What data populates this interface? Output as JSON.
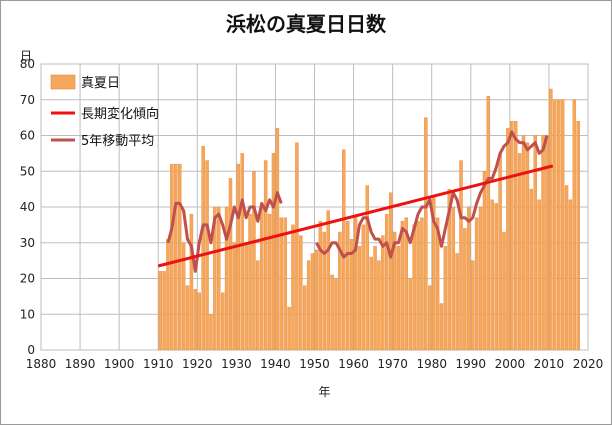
{
  "title": "浜松の真夏日日数",
  "chart_data": {
    "type": "bar",
    "title": "浜松の真夏日日数",
    "xlabel": "年",
    "ylabel": "日",
    "xlim": [
      1880,
      2020
    ],
    "ylim": [
      0,
      80
    ],
    "x_ticks": [
      1880,
      1890,
      1900,
      1910,
      1920,
      1930,
      1940,
      1950,
      1960,
      1970,
      1980,
      1990,
      2000,
      2010,
      2020
    ],
    "y_ticks": [
      0,
      10,
      20,
      30,
      40,
      50,
      60,
      70,
      80
    ],
    "grid": true,
    "legend_position": "top-left",
    "series": [
      {
        "name": "真夏日",
        "kind": "bar",
        "color": "#f5a85c",
        "x": [
          1910,
          1911,
          1912,
          1913,
          1914,
          1915,
          1916,
          1917,
          1918,
          1919,
          1920,
          1921,
          1922,
          1923,
          1924,
          1925,
          1926,
          1927,
          1928,
          1929,
          1930,
          1931,
          1932,
          1933,
          1934,
          1935,
          1936,
          1937,
          1938,
          1939,
          1940,
          1941,
          1942,
          1943,
          1944,
          1945,
          1946,
          1947,
          1948,
          1949,
          1950,
          1951,
          1952,
          1953,
          1954,
          1955,
          1956,
          1957,
          1958,
          1959,
          1960,
          1961,
          1962,
          1963,
          1964,
          1965,
          1966,
          1967,
          1968,
          1969,
          1970,
          1971,
          1972,
          1973,
          1974,
          1975,
          1976,
          1977,
          1978,
          1979,
          1980,
          1981,
          1982,
          1983,
          1984,
          1985,
          1986,
          1987,
          1988,
          1989,
          1990,
          1991,
          1992,
          1993,
          1994,
          1995,
          1996,
          1997,
          1998,
          1999,
          2000,
          2001,
          2002,
          2003,
          2004,
          2005,
          2006,
          2007,
          2008,
          2009,
          2010,
          2011,
          2012,
          2013,
          2014,
          2015,
          2016,
          2017
        ],
        "values": [
          22,
          22,
          31,
          52,
          52,
          52,
          30,
          18,
          38,
          17,
          16,
          57,
          53,
          10,
          40,
          40,
          16,
          40,
          48,
          30,
          52,
          55,
          30,
          38,
          50,
          25,
          40,
          53,
          38,
          55,
          62,
          37,
          37,
          12,
          35,
          58,
          32,
          18,
          25,
          27,
          28,
          36,
          33,
          39,
          21,
          20,
          33,
          56,
          36,
          31,
          37,
          29,
          35,
          46,
          26,
          29,
          25,
          32,
          38,
          44,
          33,
          29,
          36,
          37,
          20,
          35,
          36,
          37,
          65,
          18,
          43,
          37,
          13,
          29,
          45,
          40,
          27,
          53,
          34,
          40,
          25,
          37,
          40,
          50,
          71,
          42,
          41,
          55,
          33,
          62,
          64,
          64,
          55,
          60,
          58,
          45,
          60,
          42,
          60,
          60,
          73,
          70,
          70,
          70,
          46,
          42,
          70,
          64
        ]
      },
      {
        "name": "長期変化傾向",
        "kind": "line",
        "color": "#ee1111",
        "x": [
          1910,
          2011
        ],
        "values": [
          23.5,
          51.5
        ]
      },
      {
        "name": "5年移動平均",
        "kind": "line",
        "color": "#c0504d",
        "x": [
          1912,
          1913,
          1914,
          1915,
          1916,
          1917,
          1918,
          1919,
          1920,
          1921,
          1922,
          1923,
          1924,
          1925,
          1926,
          1927,
          1928,
          1929,
          1930,
          1931,
          1932,
          1933,
          1934,
          1935,
          1936,
          1937,
          1938,
          1939,
          1940,
          1941,
          1942,
          1943,
          1950,
          1951,
          1952,
          1953,
          1954,
          1955,
          1956,
          1957,
          1958,
          1959,
          1960,
          1961,
          1962,
          1963,
          1964,
          1965,
          1966,
          1967,
          1968,
          1969,
          1970,
          1971,
          1972,
          1973,
          1974,
          1975,
          1976,
          1977,
          1978,
          1979,
          1980,
          1981,
          1982,
          1983,
          1984,
          1985,
          1986,
          1987,
          1988,
          1989,
          1990,
          1991,
          1992,
          1993,
          1994,
          1995,
          1996,
          1997,
          1998,
          1999,
          2000,
          2001,
          2002,
          2003,
          2004,
          2005,
          2006,
          2007,
          2008,
          2009
        ],
        "values": [
          30,
          34,
          41,
          41,
          39,
          31,
          29,
          22,
          30,
          35,
          35,
          30,
          37,
          38,
          35,
          31,
          35,
          40,
          37,
          42,
          37,
          40,
          40,
          36,
          41,
          39,
          42,
          40,
          44,
          41,
          null,
          null,
          30,
          28,
          27,
          28,
          30,
          30,
          28,
          26,
          27,
          27,
          28,
          35,
          37,
          37,
          33,
          31,
          31,
          29,
          30,
          26,
          30,
          30,
          34,
          33,
          30,
          34,
          38,
          40,
          40,
          42,
          36,
          34,
          29,
          34,
          39,
          44,
          42,
          37,
          37,
          36,
          37,
          41,
          44,
          46,
          48,
          48,
          51,
          55,
          57,
          58,
          61,
          59,
          58,
          58,
          56,
          57,
          58,
          55,
          56,
          60
        ]
      }
    ]
  }
}
